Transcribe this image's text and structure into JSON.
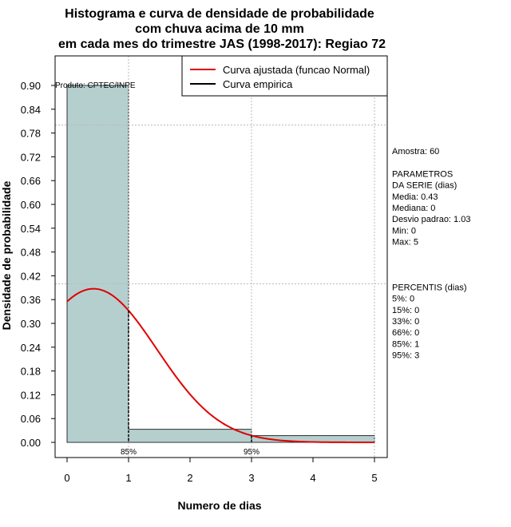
{
  "chart_data": {
    "type": "histogram",
    "title": [
      "Histograma e curva de densidade de probabilidade",
      "com chuva acima de 10 mm",
      "em cada mes do trimestre JAS (1998-2017): Regiao 72"
    ],
    "xlabel": "Numero de dias",
    "ylabel": "Densidade de probabilidade",
    "xlim": [
      0,
      5
    ],
    "ylim": [
      0,
      0.9
    ],
    "xticks": [
      0,
      1,
      2,
      3,
      4,
      5
    ],
    "yticks": [
      "0.00",
      "0.06",
      "0.12",
      "0.18",
      "0.24",
      "0.30",
      "0.36",
      "0.42",
      "0.48",
      "0.54",
      "0.60",
      "0.66",
      "0.72",
      "0.78",
      "0.84",
      "0.90"
    ],
    "bins": [
      {
        "x0": 0,
        "x1": 1,
        "density": 0.9
      },
      {
        "x0": 1,
        "x1": 3,
        "density": 0.033
      },
      {
        "x0": 3,
        "x1": 5,
        "density": 0.017
      }
    ],
    "bar_color": "#b5cfcf",
    "normal_curve": {
      "mean": 0.43,
      "sd": 1.03,
      "color": "#e00000",
      "x_from": 0,
      "x_to": 5
    },
    "percentile_markers": [
      {
        "x": 1,
        "label": "85%"
      },
      {
        "x": 3,
        "label": "95%"
      }
    ],
    "product_label": "Produto: CPTEC/INPE",
    "legend": [
      {
        "label": "Curva ajustada (funcao Normal)",
        "color": "#e00000"
      },
      {
        "label": "Curva empirica",
        "color": "#000000"
      }
    ]
  },
  "side_panel": {
    "lines": [
      "Amostra: 60",
      "",
      " PARAMETROS",
      "DA SERIE (dias)",
      "  Media: 0.43",
      "  Mediana: 0",
      "  Desvio padrao: 1.03",
      "  Min: 0",
      "  Max: 5",
      "",
      "",
      "",
      "PERCENTIS (dias)",
      "  5%: 0",
      "  15%: 0",
      "  33%: 0",
      "  66%: 0",
      "  85%: 1",
      "  95%: 3"
    ]
  }
}
